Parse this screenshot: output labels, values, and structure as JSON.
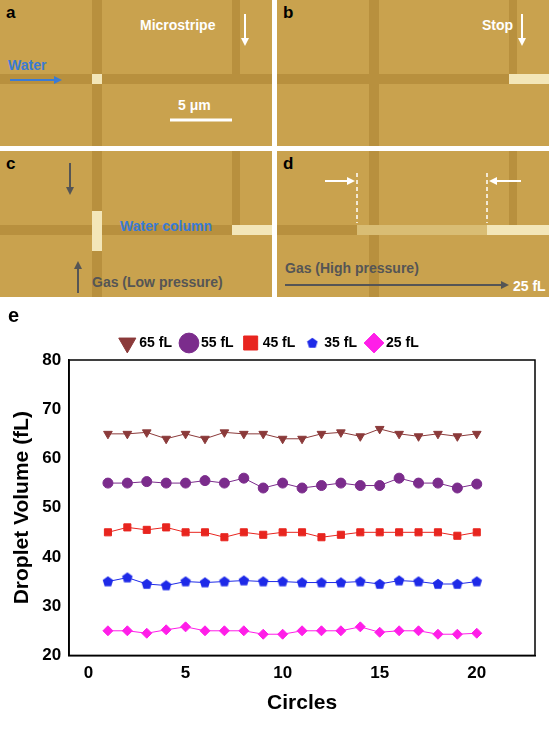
{
  "panels": [
    {
      "letter": "a",
      "labels": [
        "Microstripe",
        "Water",
        "5 μm"
      ]
    },
    {
      "letter": "b",
      "labels": [
        "Stop"
      ]
    },
    {
      "letter": "c",
      "labels": [
        "Water column",
        "Gas (Low pressure)"
      ]
    },
    {
      "letter": "d",
      "labels": [
        "Gas (High pressure)",
        "25 fL"
      ]
    }
  ],
  "chart_data": {
    "type": "line",
    "panel": "e",
    "x_label": "Circles",
    "y_label": "Droplet Volume (fL)",
    "x": [
      1,
      2,
      3,
      4,
      5,
      6,
      7,
      8,
      9,
      10,
      11,
      12,
      13,
      14,
      15,
      16,
      17,
      18,
      19,
      20
    ],
    "xlim": [
      -1,
      23
    ],
    "xticks": [
      0,
      5,
      10,
      15,
      20
    ],
    "ylim": [
      20,
      80
    ],
    "yticks": [
      20,
      30,
      40,
      50,
      60,
      70,
      80
    ],
    "grid": false,
    "legend": "top",
    "series": [
      {
        "name": "65 fL",
        "color": "#8b3a3a",
        "marker": "triangle_down",
        "values": [
          65,
          65,
          65.3,
          64,
          65,
          64,
          65.3,
          65,
          65,
          64,
          64,
          65,
          65.3,
          64.5,
          66,
          65,
          64.5,
          65,
          64.5,
          65
        ]
      },
      {
        "name": "55 fL",
        "color": "#7b2c8c",
        "marker": "circle",
        "values": [
          55,
          55,
          55.3,
          55,
          55,
          55.5,
          55,
          56,
          54,
          55,
          54,
          54.5,
          55,
          54.5,
          54.5,
          56,
          55,
          55,
          54,
          54.8
        ]
      },
      {
        "name": "45 fL",
        "color": "#e8251f",
        "marker": "square",
        "values": [
          45,
          46,
          45.5,
          46,
          45,
          45,
          44,
          45,
          44.5,
          45,
          45,
          44,
          44.5,
          45,
          45,
          45,
          45,
          45,
          44.3,
          45
        ]
      },
      {
        "name": "35 fL",
        "color": "#1e2ae8",
        "marker": "pentagon",
        "values": [
          35,
          35.8,
          34.5,
          34.2,
          35,
          34.8,
          35,
          35.2,
          35,
          35,
          34.8,
          34.8,
          34.8,
          35,
          34.5,
          35.2,
          35,
          34.5,
          34.5,
          35
        ]
      },
      {
        "name": "25 fL",
        "color": "#ff1ee8",
        "marker": "diamond",
        "values": [
          25,
          25,
          24.5,
          25.2,
          25.8,
          25,
          25,
          25,
          24.3,
          24.3,
          25,
          25,
          25,
          25.8,
          24.7,
          25,
          25,
          24.3,
          24.3,
          24.5
        ]
      }
    ]
  }
}
